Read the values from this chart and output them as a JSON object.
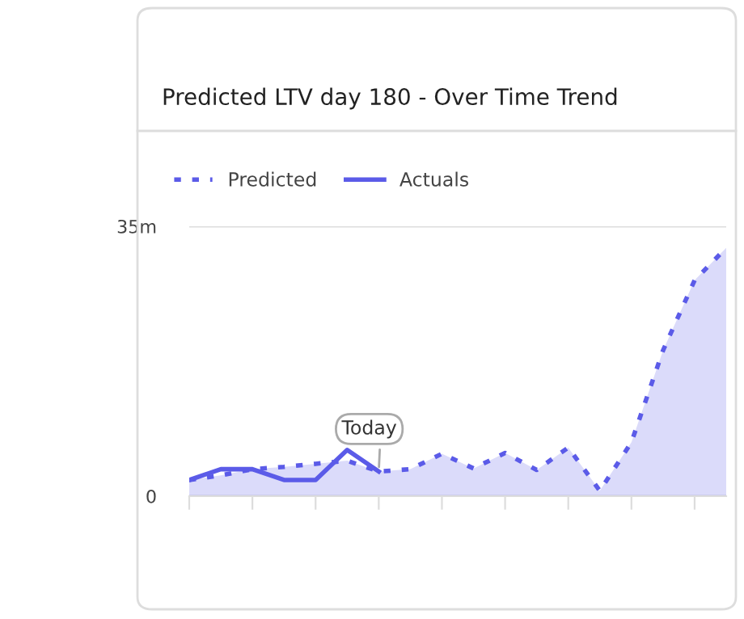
{
  "chart_data": {
    "type": "line",
    "title": "Predicted LTV day 180 - Over Time Trend",
    "categories": [
      null,
      null,
      null,
      null,
      null,
      null,
      null,
      null,
      null,
      null,
      null,
      null,
      null,
      null,
      null,
      null,
      null,
      null
    ],
    "series": [
      {
        "name": "Predicted",
        "type": "area",
        "color": "#5b5be8",
        "line_style": "dotted",
        "values": [
          2.1,
          2.7,
          3.5,
          3.8,
          4.2,
          4.6,
          3.2,
          3.5,
          5.5,
          3.6,
          5.6,
          3.4,
          6.3,
          0.7,
          7.0,
          18.9,
          28,
          32.2
        ]
      },
      {
        "name": "Actuals",
        "color": "#5b5be8",
        "line_style": "solid",
        "values": [
          2.1,
          3.5,
          3.5,
          2.1,
          2.1,
          6.0,
          3.2,
          null,
          null,
          null,
          null,
          null,
          null,
          null,
          null,
          null,
          null,
          null
        ]
      }
    ],
    "ylim": [
      0,
      35
    ],
    "yticks": [
      0,
      {
        "value": 35,
        "label": "35m"
      }
    ],
    "annotations": [
      {
        "text": "Today",
        "y": 3.2
      }
    ],
    "grid": "y",
    "legend": "top left",
    "marker": "none"
  }
}
